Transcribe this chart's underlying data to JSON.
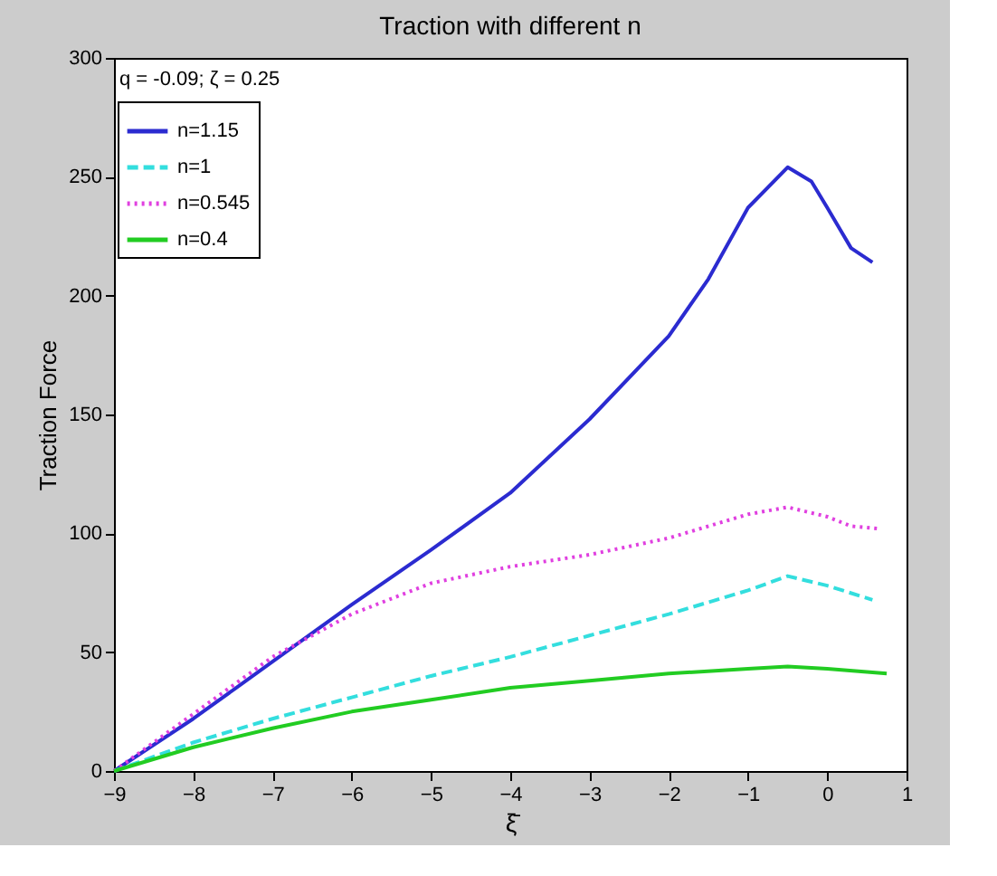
{
  "chart_data": {
    "type": "line",
    "title": "Traction with different n",
    "xlabel": "ξ̄",
    "ylabel": "Traction Force",
    "annotations": [
      "q = -0.09; ζ = 0.25"
    ],
    "xlim": [
      -9,
      1
    ],
    "xticks": [
      -9,
      -8,
      -7,
      -6,
      -5,
      -4,
      -3,
      -2,
      -1,
      0,
      1
    ],
    "ylim": [
      0,
      300
    ],
    "yticks": [
      0,
      50,
      100,
      150,
      200,
      250,
      300
    ],
    "grid": false,
    "legend": "top left",
    "series": [
      {
        "name": "n=1.15",
        "color": "#2b2bd0",
        "line_style": "solid",
        "x": [
          -9,
          -8,
          -7,
          -6,
          -5,
          -4,
          -3,
          -2,
          -1.5,
          -1,
          -0.5,
          -0.2,
          0,
          0.3,
          0.57
        ],
        "values": [
          0,
          22,
          46,
          70,
          93,
          117,
          148,
          183,
          207,
          237,
          254,
          248,
          237,
          220,
          214
        ]
      },
      {
        "name": "n=1",
        "color": "#33dede",
        "line_style": "dashed",
        "x": [
          -9,
          -8,
          -7,
          -6,
          -5,
          -4,
          -3,
          -2,
          -1,
          -0.5,
          0,
          0.57
        ],
        "values": [
          0,
          12,
          22,
          31,
          40,
          48,
          57,
          66,
          76,
          82,
          78,
          72
        ]
      },
      {
        "name": "n=0.545",
        "color": "#e040e0",
        "line_style": "dotted",
        "x": [
          -9,
          -8,
          -7,
          -6,
          -5,
          -4,
          -3,
          -2,
          -1,
          -0.5,
          0,
          0.3,
          0.63
        ],
        "values": [
          0,
          24,
          48,
          66,
          79,
          86,
          91,
          98,
          108,
          111,
          107,
          103,
          102
        ]
      },
      {
        "name": "n=0.4",
        "color": "#22cc22",
        "line_style": "solid",
        "x": [
          -9,
          -8,
          -7,
          -6,
          -5,
          -4,
          -3,
          -2,
          -1,
          -0.5,
          0,
          0.75
        ],
        "values": [
          0,
          10,
          18,
          25,
          30,
          35,
          38,
          41,
          43,
          44,
          43,
          41
        ]
      }
    ]
  }
}
